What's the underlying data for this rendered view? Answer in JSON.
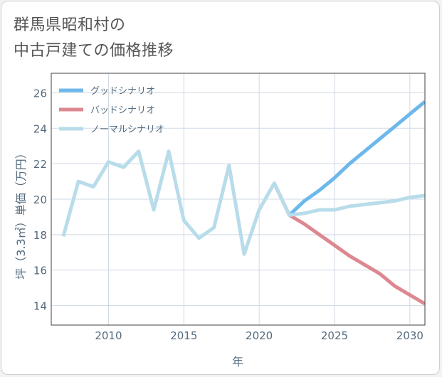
{
  "title": {
    "line1": "群馬県昭和村の",
    "line2": "中古戸建ての価格推移"
  },
  "colors": {
    "good": "#6cb8ec",
    "bad": "#dd8890",
    "normal": "#b8dcea",
    "grid": "#cfd9e3",
    "axis_text": "#556b7d",
    "plot_border": "#404040"
  },
  "chart_data": {
    "type": "line",
    "xlabel": "年",
    "ylabel": "坪（3.3㎡）単価（万円）",
    "xlim": [
      2006.2,
      2031
    ],
    "ylim": [
      12.9,
      27.1
    ],
    "x_ticks": [
      2010,
      2015,
      2020,
      2025,
      2030
    ],
    "x_tick_labels": [
      "2010",
      "2015",
      "2020",
      "2025",
      "2030"
    ],
    "y_ticks": [
      14,
      16,
      18,
      20,
      22,
      24,
      26
    ],
    "y_tick_labels": [
      "14",
      "16",
      "18",
      "20",
      "22",
      "24",
      "26"
    ],
    "grid": true,
    "legend_position": "top-left",
    "series": [
      {
        "key": "good",
        "name": "グッドシナリオ",
        "x": [
          2022,
          2023,
          2024,
          2025,
          2026,
          2027,
          2028,
          2029,
          2030,
          2031
        ],
        "values": [
          19.1,
          19.9,
          20.5,
          21.2,
          22.0,
          22.7,
          23.4,
          24.1,
          24.8,
          25.5
        ]
      },
      {
        "key": "bad",
        "name": "バッドシナリオ",
        "x": [
          2021,
          2022,
          2023,
          2024,
          2025,
          2026,
          2027,
          2028,
          2029,
          2030,
          2031
        ],
        "values": [
          20.9,
          19.1,
          18.6,
          18.0,
          17.4,
          16.8,
          16.3,
          15.8,
          15.1,
          14.6,
          14.1
        ]
      },
      {
        "key": "normal",
        "name": "ノーマルシナリオ",
        "x": [
          2007,
          2008,
          2009,
          2010,
          2011,
          2012,
          2013,
          2014,
          2015,
          2016,
          2017,
          2018,
          2019,
          2020,
          2021,
          2022,
          2023,
          2024,
          2025,
          2026,
          2027,
          2028,
          2029,
          2030,
          2031
        ],
        "values": [
          17.9,
          21.0,
          20.7,
          22.1,
          21.8,
          22.7,
          19.4,
          22.7,
          18.8,
          17.8,
          18.4,
          21.9,
          16.9,
          19.4,
          20.9,
          19.1,
          19.2,
          19.4,
          19.4,
          19.6,
          19.7,
          19.8,
          19.9,
          20.1,
          20.2
        ]
      }
    ]
  }
}
